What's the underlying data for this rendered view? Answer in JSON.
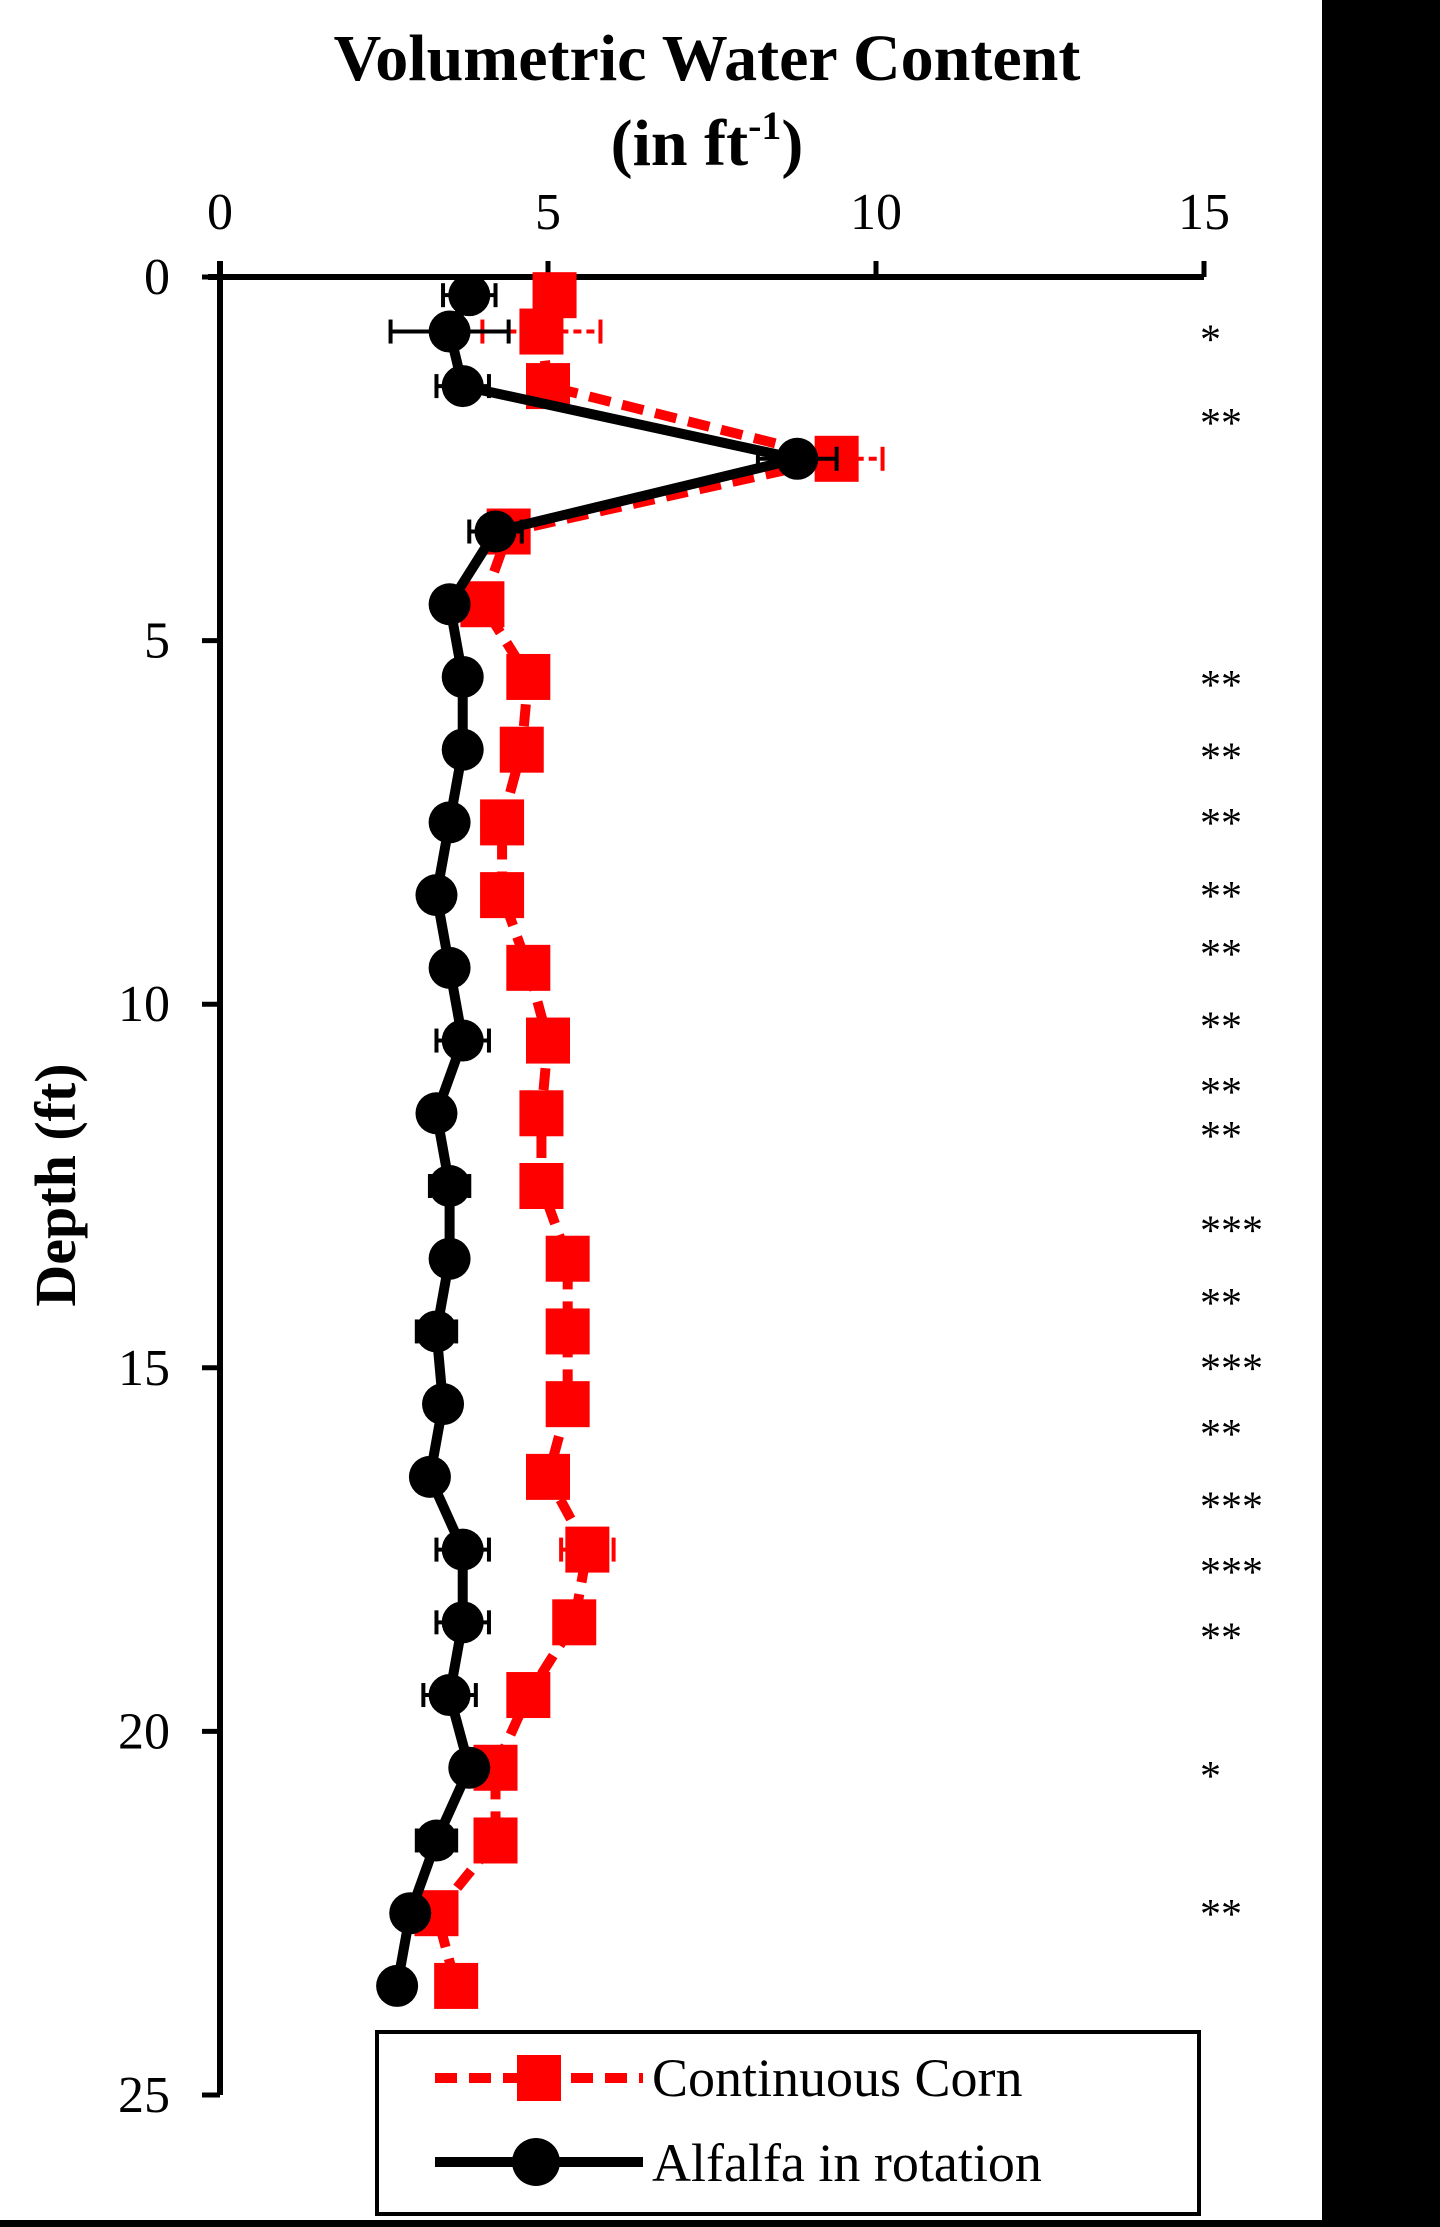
{
  "chart_data": {
    "type": "line",
    "title": "Volumetric Water Content",
    "title_unit": "(in ft",
    "title_unit_sup": "-1",
    "title_unit_close": ")",
    "xlabel": "Volumetric Water Content (in ft-1)",
    "ylabel": "Depth (ft)",
    "xlim": [
      0,
      15
    ],
    "ylim": [
      25,
      0
    ],
    "x_axis_position": "top",
    "y_inverted": true,
    "x_ticks": [
      0,
      5,
      10,
      15
    ],
    "y_ticks": [
      0,
      5,
      10,
      15,
      20,
      25
    ],
    "x_tick_labels": [
      "0",
      "5",
      "10",
      "15"
    ],
    "y_tick_labels": [
      "0",
      "5",
      "10",
      "15",
      "20",
      "25"
    ],
    "grid": false,
    "legend_position": "bottom",
    "depth": [
      0.25,
      0.75,
      1.5,
      2.5,
      3.5,
      4.5,
      5.5,
      6.5,
      7.5,
      8.5,
      9.5,
      10.5,
      11.5,
      12.5,
      13.5,
      14.5,
      15.5,
      16.5,
      17.5,
      18.5,
      19.5,
      20.5,
      21.5,
      22.5,
      23.5
    ],
    "series": [
      {
        "name": "Continuous Corn",
        "color": "#ff0000",
        "line_style": "dashed",
        "marker": "square",
        "values": [
          5.1,
          4.9,
          5.0,
          9.4,
          4.4,
          4.0,
          4.7,
          4.6,
          4.3,
          4.3,
          4.7,
          5.0,
          4.9,
          4.9,
          5.3,
          5.3,
          5.3,
          5.0,
          5.6,
          5.4,
          4.7,
          4.2,
          4.2,
          3.3,
          3.6
        ],
        "error": [
          0.3,
          0.9,
          0.3,
          0.7,
          0.3,
          0.2,
          0.3,
          0.3,
          0.3,
          0.3,
          0.3,
          0.3,
          0.3,
          0.3,
          0.3,
          0.3,
          0.3,
          0.3,
          0.4,
          0.3,
          0.3,
          0.3,
          0.3,
          0.3,
          0.3
        ]
      },
      {
        "name": "Alfalfa in rotation",
        "color": "#000000",
        "line_style": "solid",
        "marker": "circle",
        "values": [
          3.8,
          3.5,
          3.7,
          8.8,
          4.2,
          3.5,
          3.7,
          3.7,
          3.5,
          3.3,
          3.5,
          3.7,
          3.3,
          3.5,
          3.5,
          3.3,
          3.4,
          3.2,
          3.7,
          3.7,
          3.5,
          3.8,
          3.3,
          2.9,
          2.7
        ],
        "error": [
          0.4,
          0.9,
          0.4,
          0.6,
          0.4,
          0.1,
          0.1,
          0.2,
          0.2,
          0.2,
          0.1,
          0.4,
          0.2,
          0.3,
          0.1,
          0.3,
          0.1,
          0.1,
          0.4,
          0.4,
          0.4,
          0.1,
          0.3,
          0.1,
          0.1
        ]
      }
    ],
    "annotations": [
      {
        "depth": 0.75,
        "text": "*"
      },
      {
        "depth": 1.9,
        "text": "**"
      },
      {
        "depth": 5.5,
        "text": "**"
      },
      {
        "depth": 6.5,
        "text": "**"
      },
      {
        "depth": 7.4,
        "text": "**"
      },
      {
        "depth": 8.4,
        "text": "**"
      },
      {
        "depth": 9.2,
        "text": "**"
      },
      {
        "depth": 10.2,
        "text": "**"
      },
      {
        "depth": 11.1,
        "text": "**"
      },
      {
        "depth": 11.7,
        "text": "**"
      },
      {
        "depth": 13.0,
        "text": "***"
      },
      {
        "depth": 14.0,
        "text": "**"
      },
      {
        "depth": 14.9,
        "text": "***"
      },
      {
        "depth": 15.8,
        "text": "**"
      },
      {
        "depth": 16.8,
        "text": "***"
      },
      {
        "depth": 17.7,
        "text": "***"
      },
      {
        "depth": 18.6,
        "text": "**"
      },
      {
        "depth": 20.5,
        "text": "*"
      },
      {
        "depth": 22.4,
        "text": "**"
      }
    ]
  },
  "legend": {
    "items": [
      {
        "label": "Continuous Corn",
        "color": "#ff0000"
      },
      {
        "label": "Alfalfa in rotation",
        "color": "#000000"
      }
    ]
  }
}
